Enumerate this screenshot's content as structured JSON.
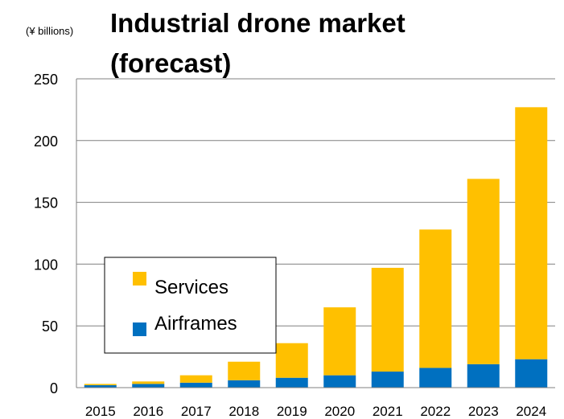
{
  "chart_data": {
    "type": "bar",
    "stacked": true,
    "title": "Industrial drone market (forecast)",
    "title_lines": [
      "Industrial drone market",
      "(forecast)"
    ],
    "unit_label": "(¥ billions)",
    "categories": [
      "2015",
      "2016",
      "2017",
      "2018",
      "2019",
      "2020",
      "2021",
      "2022",
      "2023",
      "2024"
    ],
    "series": [
      {
        "name": "Airframes",
        "color": "#0070c0",
        "values": [
          2,
          3,
          4,
          6,
          8,
          10,
          13,
          16,
          19,
          23
        ]
      },
      {
        "name": "Services",
        "color": "#ffc000",
        "values": [
          1,
          2,
          6,
          15,
          28,
          55,
          84,
          112,
          150,
          204
        ]
      }
    ],
    "ylim": [
      0,
      250
    ],
    "yticks": [
      0,
      50,
      100,
      150,
      200,
      250
    ],
    "grid": true,
    "legend": {
      "placement": "left-middle",
      "order": [
        "Services",
        "Airframes"
      ]
    }
  }
}
